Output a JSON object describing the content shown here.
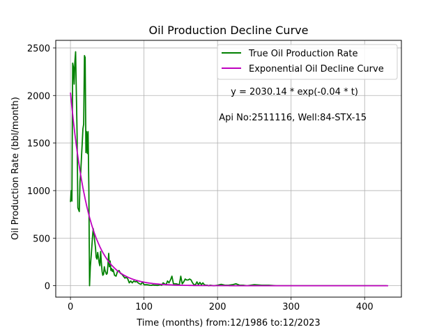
{
  "chart_data": {
    "type": "line",
    "title": "Oil Production Decline Curve",
    "xlabel": "Time (months) from:12/1986 to:12/2023",
    "ylabel": "Oil Production Rate (bbl/month)",
    "xlim": [
      -20,
      450
    ],
    "ylim": [
      -120,
      2580
    ],
    "xticks": [
      0,
      100,
      200,
      300,
      400
    ],
    "yticks": [
      0,
      500,
      1000,
      1500,
      2000,
      2500
    ],
    "grid": true,
    "legend_position": "top-right",
    "annotations": [
      {
        "text": "y = 2030.14 * exp(-0.04 * t)",
        "x": 218,
        "y": 2010
      },
      {
        "text": "Api No:2511116, Well:84-STX-15",
        "x": 202,
        "y": 1740
      }
    ],
    "colors": {
      "true_rate": "#008000",
      "decline_curve": "#bf00bf",
      "grid": "#b0b0b0"
    },
    "decline_params": {
      "a": 2030.14,
      "b": 0.04
    },
    "series": [
      {
        "name": "True Oil Production Rate",
        "color": "#008000",
        "x": [
          0,
          1,
          2,
          3,
          4,
          5,
          6,
          7,
          8,
          9,
          10,
          11,
          12,
          13,
          14,
          15,
          16,
          17,
          18,
          19,
          20,
          21,
          22,
          23,
          24,
          25,
          26,
          27,
          28,
          29,
          30,
          31,
          32,
          33,
          34,
          35,
          36,
          37,
          38,
          39,
          40,
          41,
          42,
          43,
          44,
          45,
          46,
          47,
          48,
          49,
          50,
          51,
          52,
          53,
          54,
          55,
          56,
          57,
          58,
          60,
          62,
          64,
          66,
          68,
          70,
          72,
          74,
          76,
          78,
          80,
          82,
          84,
          86,
          88,
          90,
          92,
          94,
          96,
          98,
          100,
          102,
          104,
          106,
          108,
          110,
          112,
          114,
          116,
          118,
          120,
          122,
          124,
          126,
          128,
          130,
          132,
          134,
          136,
          138,
          140,
          142,
          144,
          146,
          148,
          150,
          152,
          154,
          156,
          158,
          160,
          162,
          164,
          166,
          168,
          170,
          172,
          174,
          176,
          178,
          180,
          182,
          184,
          186,
          188,
          190,
          195,
          200,
          205,
          210,
          215,
          220,
          225,
          230,
          235,
          240,
          245,
          250,
          260,
          270,
          280,
          290,
          300,
          310,
          320,
          330,
          340,
          350,
          360,
          370,
          380,
          390,
          400,
          410,
          420,
          430
        ],
        "values": [
          880,
          1000,
          890,
          2340,
          2300,
          2120,
          2350,
          2460,
          2050,
          1600,
          820,
          800,
          780,
          1100,
          1200,
          1350,
          1500,
          1650,
          1700,
          2420,
          2400,
          1400,
          1620,
          1390,
          1620,
          1020,
          0,
          200,
          300,
          400,
          520,
          600,
          540,
          470,
          400,
          300,
          280,
          350,
          300,
          240,
          210,
          360,
          250,
          150,
          110,
          120,
          200,
          160,
          140,
          120,
          130,
          220,
          340,
          200,
          260,
          160,
          180,
          150,
          170,
          110,
          100,
          150,
          160,
          130,
          120,
          100,
          80,
          90,
          70,
          30,
          50,
          30,
          50,
          40,
          45,
          30,
          20,
          15,
          40,
          10,
          10,
          10,
          8,
          5,
          4,
          8,
          6,
          5,
          3,
          5,
          10,
          5,
          30,
          20,
          10,
          50,
          30,
          60,
          100,
          20,
          20,
          20,
          15,
          10,
          100,
          20,
          40,
          70,
          60,
          60,
          70,
          60,
          30,
          10,
          10,
          40,
          10,
          35,
          10,
          30,
          10,
          5,
          5,
          0,
          5,
          0,
          5,
          15,
          5,
          5,
          10,
          20,
          5,
          5,
          0,
          5,
          10,
          5,
          5,
          0,
          0,
          0,
          0,
          0,
          0,
          0,
          0,
          0,
          0,
          0,
          0,
          0,
          0,
          0,
          0
        ]
      },
      {
        "name": "Exponential Oil Decline Curve",
        "color": "#bf00bf",
        "x_range": [
          0,
          432
        ]
      }
    ]
  }
}
